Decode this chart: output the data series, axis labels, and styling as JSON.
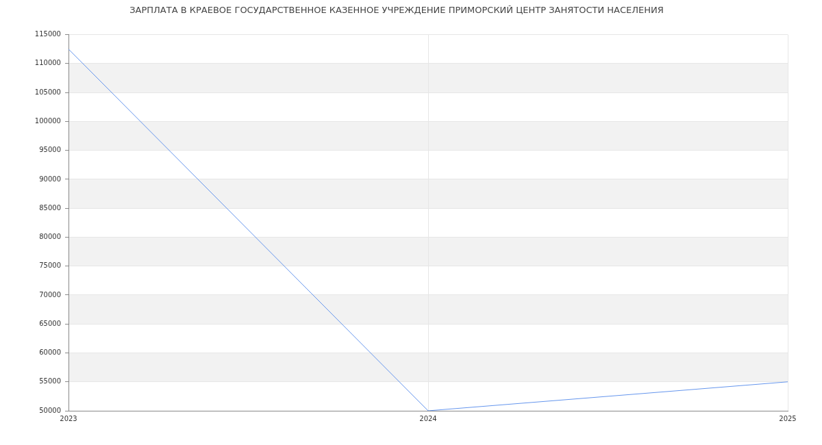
{
  "chart_data": {
    "type": "line",
    "title": "ЗАРПЛАТА В КРАЕВОЕ ГОСУДАРСТВЕННОЕ КАЗЕННОЕ УЧРЕЖДЕНИЕ ПРИМОРСКИЙ ЦЕНТР ЗАНЯТОСТИ НАСЕЛЕНИЯ",
    "categories": [
      "2023",
      "2024",
      "2025"
    ],
    "series": [
      {
        "color": "#6495ed",
        "values": [
          112500,
          50000,
          55000
        ]
      }
    ],
    "ylim": [
      50000,
      115000
    ],
    "yticks": [
      50000,
      55000,
      60000,
      65000,
      70000,
      75000,
      80000,
      85000,
      90000,
      95000,
      100000,
      105000,
      110000,
      115000
    ],
    "grid": true
  }
}
